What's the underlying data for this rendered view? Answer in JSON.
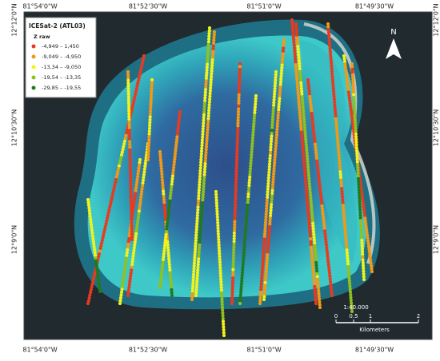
{
  "map": {
    "top_labels": [
      "81°54'0\"W",
      "81°52'30\"W",
      "81°51'0\"W",
      "81°49'30\"W"
    ],
    "bottom_labels": [
      "81°54'0\"W",
      "81°52'30\"W",
      "81°51'0\"W",
      "81°49'30\"W"
    ],
    "left_labels": [
      "12°12'0\"N",
      "12°10'30\"N",
      "12°9'0\"N"
    ],
    "right_labels": [
      "12°12'0\"N",
      "12°10'30\"N",
      "12°9'0\"N"
    ],
    "legend": {
      "title": "ICESat-2 (ATL03)",
      "subtitle": "Z raw",
      "items": [
        {
          "label": "-4,949 – 1,450",
          "color": "#e83a1f"
        },
        {
          "label": "-9,049 – -4,950",
          "color": "#f29a16"
        },
        {
          "label": "-13,34 – -9,050",
          "color": "#f2f21c"
        },
        {
          "label": "-19,54 – -13,35",
          "color": "#8fc21f"
        },
        {
          "label": "-29,85 – -19,55",
          "color": "#1f7a1f"
        }
      ]
    },
    "scale": {
      "ratio": "1:40.000",
      "ticks": [
        "0",
        "0.5",
        "1",
        "2"
      ],
      "unit": "Kilometers"
    },
    "north": "N"
  }
}
